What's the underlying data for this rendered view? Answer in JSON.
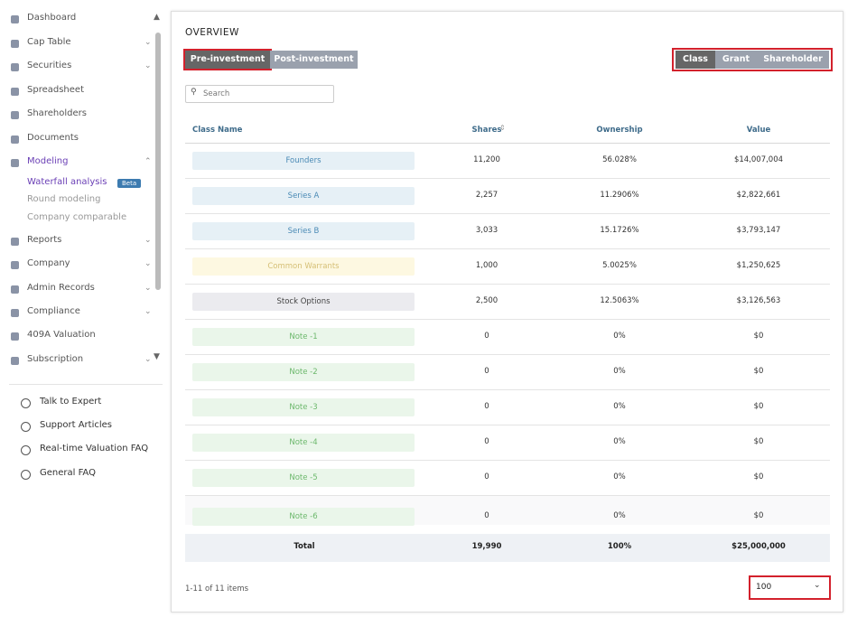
{
  "sidebar": {
    "nav": [
      {
        "label": "Dashboard"
      },
      {
        "label": "Cap Table",
        "expandable": true
      },
      {
        "label": "Securities",
        "expandable": true
      },
      {
        "label": "Spreadsheet"
      },
      {
        "label": "Shareholders"
      },
      {
        "label": "Documents"
      },
      {
        "label": "Modeling",
        "expandable": true,
        "active": true,
        "children": [
          {
            "label": "Waterfall analysis",
            "badge": "Beta",
            "active": true
          },
          {
            "label": "Round modeling"
          },
          {
            "label": "Company comparable"
          }
        ]
      },
      {
        "label": "Reports",
        "expandable": true
      },
      {
        "label": "Company",
        "expandable": true
      },
      {
        "label": "Admin Records",
        "expandable": true
      },
      {
        "label": "Compliance",
        "expandable": true
      },
      {
        "label": "409A Valuation"
      },
      {
        "label": "Subscription",
        "expandable": true
      }
    ],
    "help": [
      "Talk to Expert",
      "Support Articles",
      "Real-time Valuation FAQ",
      "General FAQ"
    ]
  },
  "main": {
    "title": "OVERVIEW",
    "investment_toggle": [
      "Pre-investment",
      "Post-investment"
    ],
    "view_tabs": [
      "Class",
      "Grant",
      "Shareholder"
    ],
    "search_placeholder": "Search",
    "table": {
      "headers": [
        "Class Name",
        "Shares",
        "Ownership",
        "Value"
      ],
      "rows": [
        {
          "style": "blue",
          "cells": [
            "Founders",
            "11,200",
            "56.028%",
            "$14,007,004"
          ]
        },
        {
          "style": "blue",
          "cells": [
            "Series A",
            "2,257",
            "11.2906%",
            "$2,822,661"
          ]
        },
        {
          "style": "blue",
          "cells": [
            "Series B",
            "3,033",
            "15.1726%",
            "$3,793,147"
          ]
        },
        {
          "style": "yellow",
          "cells": [
            "Common Warrants",
            "1,000",
            "5.0025%",
            "$1,250,625"
          ]
        },
        {
          "style": "gray",
          "cells": [
            "Stock Options",
            "2,500",
            "12.5063%",
            "$3,126,563"
          ]
        },
        {
          "style": "green",
          "cells": [
            "Note -1",
            "0",
            "0%",
            "$0"
          ]
        },
        {
          "style": "green",
          "cells": [
            "Note -2",
            "0",
            "0%",
            "$0"
          ]
        },
        {
          "style": "green",
          "cells": [
            "Note -3",
            "0",
            "0%",
            "$0"
          ]
        },
        {
          "style": "green",
          "cells": [
            "Note -4",
            "0",
            "0%",
            "$0"
          ]
        },
        {
          "style": "green",
          "cells": [
            "Note -5",
            "0",
            "0%",
            "$0"
          ]
        },
        {
          "style": "green",
          "cells": [
            "Note -6",
            "0",
            "0%",
            "$0"
          ]
        }
      ],
      "total": [
        "Total",
        "19,990",
        "100%",
        "$25,000,000"
      ]
    },
    "pagination": {
      "summary": "1-11 of 11 items",
      "page_size": "100"
    }
  }
}
